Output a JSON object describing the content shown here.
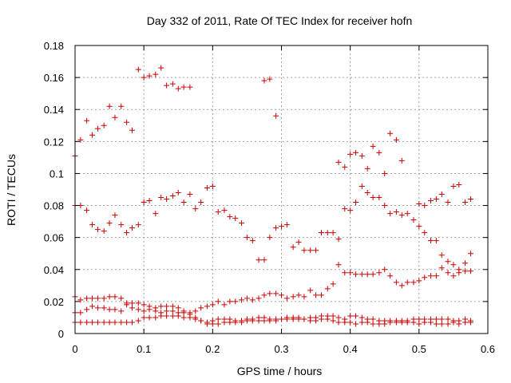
{
  "chart_data": {
    "type": "scatter",
    "title": "Day 332 of 2011, Rate Of TEC Index for receiver hofn",
    "xlabel": "GPS time / hours",
    "ylabel": "ROTI / TECUs",
    "xlim": [
      0,
      0.6
    ],
    "ylim": [
      0,
      0.18
    ],
    "xticks": [
      "0",
      "0.1",
      "0.2",
      "0.3",
      "0.4",
      "0.5",
      "0.6"
    ],
    "yticks": [
      "0",
      "0.02",
      "0.04",
      "0.06",
      "0.08",
      "0.1",
      "0.12",
      "0.14",
      "0.16",
      "0.18"
    ],
    "grid": true,
    "marker": "+",
    "color": "#cc0000",
    "series": [
      {
        "x": [
          0,
          0.008,
          0.017,
          0.025,
          0.033,
          0.042,
          0.05,
          0.058,
          0.067,
          0.075,
          0.083,
          0.092,
          0.1,
          0.108,
          0.117,
          0.125,
          0.133,
          0.142,
          0.15,
          0.158,
          0.167
        ],
        "y": [
          0.111,
          0.121,
          0.133,
          0.124,
          0.128,
          0.13,
          0.142,
          0.135,
          0.142,
          0.132,
          0.127,
          0.165,
          0.16,
          0.161,
          0.162,
          0.166,
          0.155,
          0.156,
          0.153,
          0.154,
          0.154
        ]
      },
      {
        "x": [
          0.275,
          0.283,
          0.292
        ],
        "y": [
          0.158,
          0.159,
          0.136
        ]
      },
      {
        "x": [
          0.383,
          0.392,
          0.4,
          0.408,
          0.417,
          0.425,
          0.433,
          0.442,
          0.45,
          0.458,
          0.467,
          0.475
        ],
        "y": [
          0.107,
          0.104,
          0.112,
          0.113,
          0.111,
          0.103,
          0.117,
          0.113,
          0.1,
          0.125,
          0.121,
          0.108
        ]
      },
      {
        "x": [
          0,
          0.008,
          0.017,
          0.025,
          0.033,
          0.042,
          0.05,
          0.058,
          0.067,
          0.075,
          0.083,
          0.092,
          0.1,
          0.108,
          0.117,
          0.125,
          0.133,
          0.142,
          0.15,
          0.158,
          0.167,
          0.175,
          0.183,
          0.192,
          0.2,
          0.208,
          0.217,
          0.225,
          0.233,
          0.242,
          0.25,
          0.258,
          0.267,
          0.275,
          0.283,
          0.292,
          0.3,
          0.308,
          0.317,
          0.325,
          0.333,
          0.342,
          0.35,
          0.358,
          0.367,
          0.375,
          0.383,
          0.392,
          0.4,
          0.408,
          0.417,
          0.425,
          0.433,
          0.442,
          0.45,
          0.458,
          0.467,
          0.475,
          0.483,
          0.492,
          0.5,
          0.508,
          0.517,
          0.525,
          0.533,
          0.542,
          0.55,
          0.558,
          0.567,
          0.575
        ],
        "y": [
          0.08,
          0.08,
          0.077,
          0.068,
          0.065,
          0.064,
          0.069,
          0.074,
          0.068,
          0.063,
          0.066,
          0.068,
          0.082,
          0.083,
          0.075,
          0.085,
          0.084,
          0.086,
          0.088,
          0.082,
          0.087,
          0.078,
          0.082,
          0.091,
          0.092,
          0.076,
          0.077,
          0.073,
          0.072,
          0.069,
          0.06,
          0.058,
          0.046,
          0.046,
          0.06,
          0.066,
          0.067,
          0.068,
          0.054,
          0.057,
          0.052,
          0.052,
          0.052,
          0.063,
          0.063,
          0.063,
          0.059,
          0.078,
          0.077,
          0.082,
          0.092,
          0.088,
          0.085,
          0.085,
          0.08,
          0.075,
          0.076,
          0.074,
          0.075,
          0.071,
          0.081,
          0.08,
          0.083,
          0.084,
          0.087,
          0.082,
          0.092,
          0.093,
          0.082,
          0.084
        ]
      },
      {
        "x": [
          0.383,
          0.392,
          0.4,
          0.408,
          0.417,
          0.425,
          0.433,
          0.442,
          0.45,
          0.458,
          0.467,
          0.475,
          0.483,
          0.492,
          0.5,
          0.508,
          0.517,
          0.525,
          0.533,
          0.542,
          0.55,
          0.558,
          0.567,
          0.575
        ],
        "y": [
          0.043,
          0.038,
          0.038,
          0.037,
          0.037,
          0.037,
          0.037,
          0.038,
          0.04,
          0.036,
          0.032,
          0.03,
          0.032,
          0.032,
          0.033,
          0.035,
          0.036,
          0.036,
          0.041,
          0.038,
          0.036,
          0.038,
          0.039,
          0.039
        ]
      },
      {
        "x": [
          0.5,
          0.508,
          0.517,
          0.525,
          0.533,
          0.542,
          0.55,
          0.558,
          0.567,
          0.575
        ],
        "y": [
          0.067,
          0.063,
          0.058,
          0.058,
          0.049,
          0.045,
          0.043,
          0.04,
          0.044,
          0.05
        ]
      },
      {
        "x": [
          0,
          0.008,
          0.017,
          0.025,
          0.033,
          0.042,
          0.05,
          0.058,
          0.067,
          0.075,
          0.083,
          0.092,
          0.1,
          0.108,
          0.117,
          0.125,
          0.133,
          0.142,
          0.15,
          0.158,
          0.167,
          0.175,
          0.183,
          0.192,
          0.2,
          0.208,
          0.217,
          0.225,
          0.233,
          0.242,
          0.25,
          0.258,
          0.267,
          0.275,
          0.283,
          0.292,
          0.3,
          0.308,
          0.317,
          0.325,
          0.333,
          0.342,
          0.35,
          0.358,
          0.367,
          0.375
        ],
        "y": [
          0.023,
          0.021,
          0.022,
          0.022,
          0.022,
          0.022,
          0.023,
          0.023,
          0.022,
          0.019,
          0.019,
          0.019,
          0.018,
          0.017,
          0.016,
          0.017,
          0.017,
          0.017,
          0.016,
          0.014,
          0.013,
          0.014,
          0.016,
          0.017,
          0.018,
          0.02,
          0.018,
          0.02,
          0.02,
          0.021,
          0.022,
          0.021,
          0.022,
          0.024,
          0.025,
          0.025,
          0.024,
          0.022,
          0.023,
          0.024,
          0.023,
          0.027,
          0.024,
          0.024,
          0.028,
          0.031
        ]
      },
      {
        "x": [
          0,
          0.008,
          0.017,
          0.025,
          0.033,
          0.042,
          0.05,
          0.058,
          0.067,
          0.075,
          0.083,
          0.092,
          0.1,
          0.108,
          0.117,
          0.125,
          0.133,
          0.142,
          0.15,
          0.158,
          0.167,
          0.175,
          0.183,
          0.192,
          0.2,
          0.208,
          0.217,
          0.225,
          0.233,
          0.242,
          0.25,
          0.258,
          0.267,
          0.275,
          0.283,
          0.292,
          0.3,
          0.308,
          0.317,
          0.325,
          0.333,
          0.342,
          0.35,
          0.358,
          0.367,
          0.375,
          0.383,
          0.392,
          0.4,
          0.408,
          0.417,
          0.425,
          0.433,
          0.442,
          0.45,
          0.458,
          0.467,
          0.475,
          0.483,
          0.492,
          0.5,
          0.508,
          0.517,
          0.525,
          0.533,
          0.542,
          0.55,
          0.558,
          0.567,
          0.575
        ],
        "y": [
          0.013,
          0.013,
          0.015,
          0.017,
          0.016,
          0.016,
          0.015,
          0.015,
          0.014,
          0.018,
          0.016,
          0.015,
          0.014,
          0.015,
          0.014,
          0.013,
          0.014,
          0.014,
          0.013,
          0.013,
          0.012,
          0.01,
          0.008,
          0.007,
          0.008,
          0.009,
          0.009,
          0.009,
          0.008,
          0.008,
          0.009,
          0.009,
          0.01,
          0.01,
          0.009,
          0.009,
          0.009,
          0.01,
          0.01,
          0.01,
          0.009,
          0.01,
          0.01,
          0.011,
          0.011,
          0.011,
          0.01,
          0.009,
          0.011,
          0.011,
          0.01,
          0.009,
          0.009,
          0.008,
          0.008,
          0.008,
          0.008,
          0.008,
          0.008,
          0.009,
          0.009,
          0.009,
          0.009,
          0.009,
          0.009,
          0.009,
          0.008,
          0.008,
          0.009,
          0.008
        ]
      },
      {
        "x": [
          0,
          0.008,
          0.017,
          0.025,
          0.033,
          0.042,
          0.05,
          0.058,
          0.067,
          0.075,
          0.083,
          0.092,
          0.1,
          0.108,
          0.117,
          0.125,
          0.133,
          0.142,
          0.15,
          0.158,
          0.167,
          0.175,
          0.183,
          0.192,
          0.2,
          0.208,
          0.217,
          0.225,
          0.233,
          0.242,
          0.25,
          0.258,
          0.267,
          0.275,
          0.283,
          0.292,
          0.3,
          0.308,
          0.317,
          0.325,
          0.333,
          0.342,
          0.35,
          0.358,
          0.367,
          0.375,
          0.383,
          0.392,
          0.4,
          0.408,
          0.417,
          0.425,
          0.433,
          0.442,
          0.45,
          0.458,
          0.467,
          0.475,
          0.483,
          0.492,
          0.5,
          0.508,
          0.517,
          0.525,
          0.533,
          0.542,
          0.55,
          0.558,
          0.567,
          0.575
        ],
        "y": [
          0.007,
          0.007,
          0.007,
          0.007,
          0.007,
          0.007,
          0.007,
          0.007,
          0.007,
          0.007,
          0.007,
          0.008,
          0.01,
          0.01,
          0.01,
          0.011,
          0.011,
          0.011,
          0.011,
          0.01,
          0.01,
          0.009,
          0.008,
          0.006,
          0.006,
          0.006,
          0.007,
          0.007,
          0.007,
          0.007,
          0.008,
          0.008,
          0.008,
          0.008,
          0.008,
          0.008,
          0.009,
          0.009,
          0.009,
          0.009,
          0.009,
          0.008,
          0.008,
          0.009,
          0.009,
          0.008,
          0.007,
          0.007,
          0.007,
          0.006,
          0.007,
          0.007,
          0.006,
          0.006,
          0.006,
          0.007,
          0.007,
          0.007,
          0.007,
          0.007,
          0.006,
          0.007,
          0.007,
          0.006,
          0.006,
          0.006,
          0.007,
          0.006,
          0.007,
          0.007
        ]
      }
    ]
  }
}
